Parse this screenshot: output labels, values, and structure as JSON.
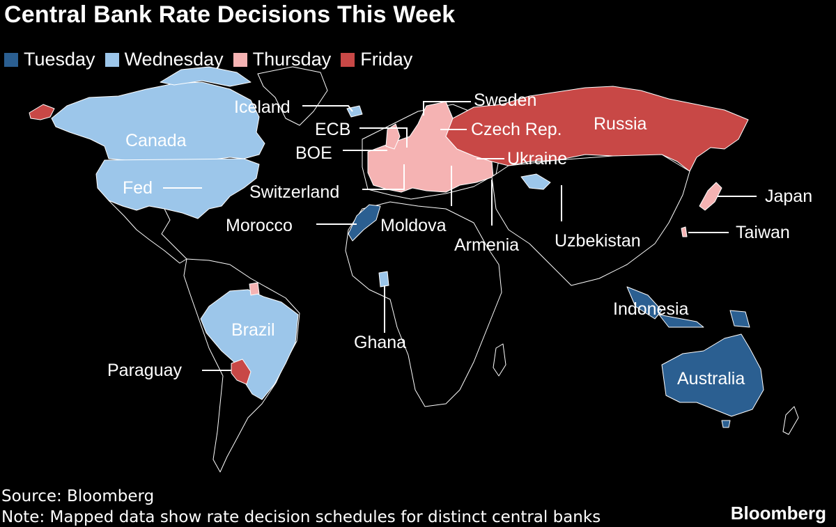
{
  "title": "Central Bank Rate Decisions This Week",
  "colors": {
    "background": "#000000",
    "tuesday": "#2b5f91",
    "wednesday": "#9cc6ea",
    "thursday": "#f5b3b3",
    "friday": "#c84846",
    "other_land": "#000000",
    "lines": "#ffffff"
  },
  "legend": [
    {
      "day": "tuesday",
      "label": "Tuesday"
    },
    {
      "day": "wednesday",
      "label": "Wednesday"
    },
    {
      "day": "thursday",
      "label": "Thursday"
    },
    {
      "day": "friday",
      "label": "Friday"
    }
  ],
  "labels": {
    "canada": "Canada",
    "fed": "Fed",
    "iceland": "Iceland",
    "ecb": "ECB",
    "boe": "BOE",
    "switzerland": "Switzerland",
    "morocco": "Morocco",
    "moldova": "Moldova",
    "armenia": "Armenia",
    "uzbekistan": "Uzbekistan",
    "sweden": "Sweden",
    "czech": "Czech Rep.",
    "ukraine": "Ukraine",
    "russia": "Russia",
    "japan": "Japan",
    "taiwan": "Taiwan",
    "indonesia": "Indonesia",
    "australia": "Australia",
    "brazil": "Brazil",
    "paraguay": "Paraguay",
    "ghana": "Ghana"
  },
  "source": "Source: Bloomberg",
  "note": "Note: Mapped data show rate decision schedules for distinct central banks",
  "brand": "Bloomberg"
}
